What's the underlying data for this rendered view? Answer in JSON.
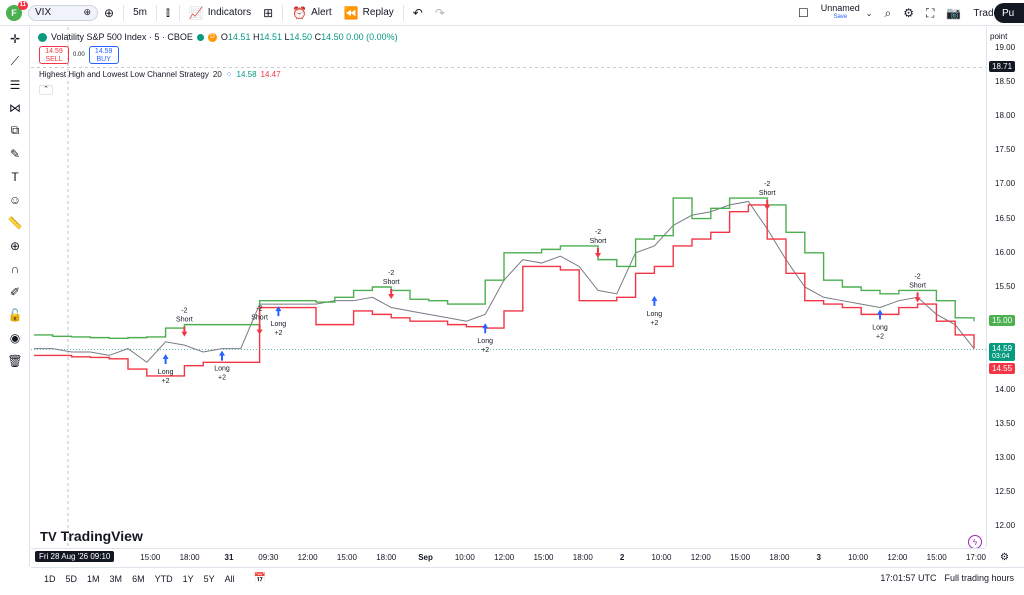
{
  "header": {
    "avatar_letter": "F",
    "notifications": "11",
    "symbol": "VIX",
    "interval": "5m",
    "indicators_label": "Indicators",
    "alert_label": "Alert",
    "replay_label": "Replay",
    "layout_name": "Unnamed",
    "layout_status": "Save",
    "trade_label": "Trade",
    "publish_label": "Pu"
  },
  "legend": {
    "title": "Volatility S&P 500 Index · 5 · CBOE",
    "open_label": "O",
    "open": "14.51",
    "high_label": "H",
    "high": "14.51",
    "low_label": "L",
    "low": "14.50",
    "close_label": "C",
    "close": "14.50",
    "change": "0.00 (0.00%)",
    "sell_price": "14.59",
    "sell_label": "SELL",
    "spread": "0.00",
    "buy_price": "14.59",
    "buy_label": "BUY",
    "strategy_name": "Highest High and Lowest Low Channel Strategy",
    "strategy_length": "20",
    "strategy_high": "14.58",
    "strategy_low": "14.47"
  },
  "axis_mode": "point",
  "price_axis": {
    "ticks": [
      "19.00",
      "18.50",
      "18.00",
      "17.50",
      "17.00",
      "16.50",
      "16.00",
      "15.50",
      "15.00",
      "14.50",
      "14.00",
      "13.50",
      "13.00",
      "12.50",
      "12.00"
    ],
    "crosshair_price": "18.71",
    "upper_channel_price": "15.00",
    "last_price": "14.59",
    "countdown": "03:04",
    "lower_channel_price": "14.55",
    "colors": {
      "green": "#089981",
      "red": "#f23645",
      "upper_line": "#4caf50",
      "lower_line": "#f23645"
    }
  },
  "time_axis": {
    "crosshair_date": "Fri 28 Aug '26  09:10",
    "ticks": [
      "0",
      "15:00",
      "18:00",
      "31",
      "09:30",
      "12:00",
      "15:00",
      "18:00",
      "Sep",
      "10:00",
      "12:00",
      "15:00",
      "18:00",
      "2",
      "10:00",
      "12:00",
      "15:00",
      "18:00",
      "3",
      "10:00",
      "12:00",
      "15:00",
      "17:00"
    ]
  },
  "bottom_bar": {
    "ranges": [
      "1D",
      "5D",
      "1M",
      "3M",
      "6M",
      "YTD",
      "1Y",
      "5Y",
      "All"
    ],
    "clock": "17:01:57 UTC",
    "session": "Full trading hours"
  },
  "watermark": "TradingView",
  "chart_data": {
    "type": "line",
    "ylim": [
      11.7,
      19.3
    ],
    "x": [
      0,
      1,
      2,
      3,
      4,
      5,
      6,
      7,
      8,
      9,
      10,
      11,
      12,
      13,
      14,
      15,
      16,
      17,
      18,
      19,
      20,
      21,
      22,
      23,
      24,
      25,
      26,
      27,
      28,
      29,
      30,
      31,
      32,
      33,
      34,
      35,
      36,
      37,
      38,
      39,
      40,
      41,
      42,
      43,
      44,
      45,
      46,
      47,
      48,
      49,
      50
    ],
    "series": [
      {
        "values": [
          14.8,
          14.78,
          14.77,
          14.76,
          14.75,
          14.76,
          14.77,
          14.9,
          14.95,
          14.95,
          14.95,
          14.95,
          15.3,
          15.3,
          15.3,
          15.28,
          15.35,
          15.45,
          15.5,
          15.45,
          15.32,
          15.3,
          15.25,
          15.25,
          15.6,
          16.0,
          16.0,
          16.05,
          16.1,
          16.1,
          15.9,
          15.8,
          16.2,
          16.25,
          16.8,
          16.5,
          16.65,
          16.8,
          16.8,
          16.7,
          16.3,
          16.0,
          15.6,
          15.5,
          15.45,
          15.4,
          15.45,
          15.45,
          15.3,
          15.05,
          15.0
        ]
      },
      {
        "values": [
          14.5,
          14.5,
          14.48,
          14.47,
          14.45,
          14.3,
          14.2,
          14.2,
          14.35,
          14.4,
          14.4,
          14.4,
          15.2,
          15.2,
          15.2,
          14.95,
          14.95,
          15.15,
          15.1,
          15.05,
          15.0,
          15.0,
          14.95,
          14.92,
          14.9,
          15.15,
          15.8,
          15.8,
          15.75,
          15.3,
          15.3,
          15.35,
          15.7,
          15.8,
          16.1,
          16.2,
          16.3,
          16.6,
          16.7,
          16.2,
          15.7,
          15.3,
          15.25,
          15.2,
          15.1,
          15.1,
          15.2,
          15.25,
          15.0,
          14.8,
          14.6
        ]
      },
      {
        "values": [
          14.6,
          14.6,
          14.55,
          14.55,
          14.5,
          14.6,
          14.4,
          14.7,
          14.65,
          14.55,
          14.6,
          14.6,
          15.25,
          15.25,
          15.25,
          15.25,
          15.3,
          15.3,
          15.35,
          15.2,
          15.15,
          15.1,
          15.05,
          15.0,
          15.1,
          15.6,
          15.9,
          15.85,
          15.95,
          15.8,
          15.45,
          15.4,
          16.0,
          16.1,
          16.4,
          16.55,
          16.6,
          16.7,
          16.75,
          16.35,
          15.9,
          15.5,
          15.35,
          15.3,
          15.25,
          15.2,
          15.3,
          15.35,
          15.1,
          14.95,
          14.6
        ]
      }
    ],
    "signals": [
      {
        "type": "long",
        "label": "Long",
        "qty": "+2",
        "x": 7,
        "y": 14.55
      },
      {
        "type": "short",
        "label": "Short",
        "qty": "-2",
        "x": 8,
        "y": 14.95
      },
      {
        "type": "long",
        "label": "Long",
        "qty": "+2",
        "x": 10,
        "y": 14.6
      },
      {
        "type": "short",
        "label": "Short",
        "qty": "-2",
        "x": 12,
        "y": 14.98
      },
      {
        "type": "long",
        "label": "Long",
        "qty": "+2",
        "x": 13,
        "y": 15.25
      },
      {
        "type": "short",
        "label": "Short",
        "qty": "-2",
        "x": 19,
        "y": 15.5
      },
      {
        "type": "long",
        "label": "Long",
        "qty": "+2",
        "x": 24,
        "y": 15.0
      },
      {
        "type": "short",
        "label": "Short",
        "qty": "-2",
        "x": 30,
        "y": 16.1
      },
      {
        "type": "long",
        "label": "Long",
        "qty": "+2",
        "x": 33,
        "y": 15.4
      },
      {
        "type": "short",
        "label": "Short",
        "qty": "-2",
        "x": 39,
        "y": 16.8
      },
      {
        "type": "long",
        "label": "Long",
        "qty": "+2",
        "x": 45,
        "y": 15.2
      },
      {
        "type": "short",
        "label": "Short",
        "qty": "-2",
        "x": 47,
        "y": 15.45
      }
    ]
  }
}
